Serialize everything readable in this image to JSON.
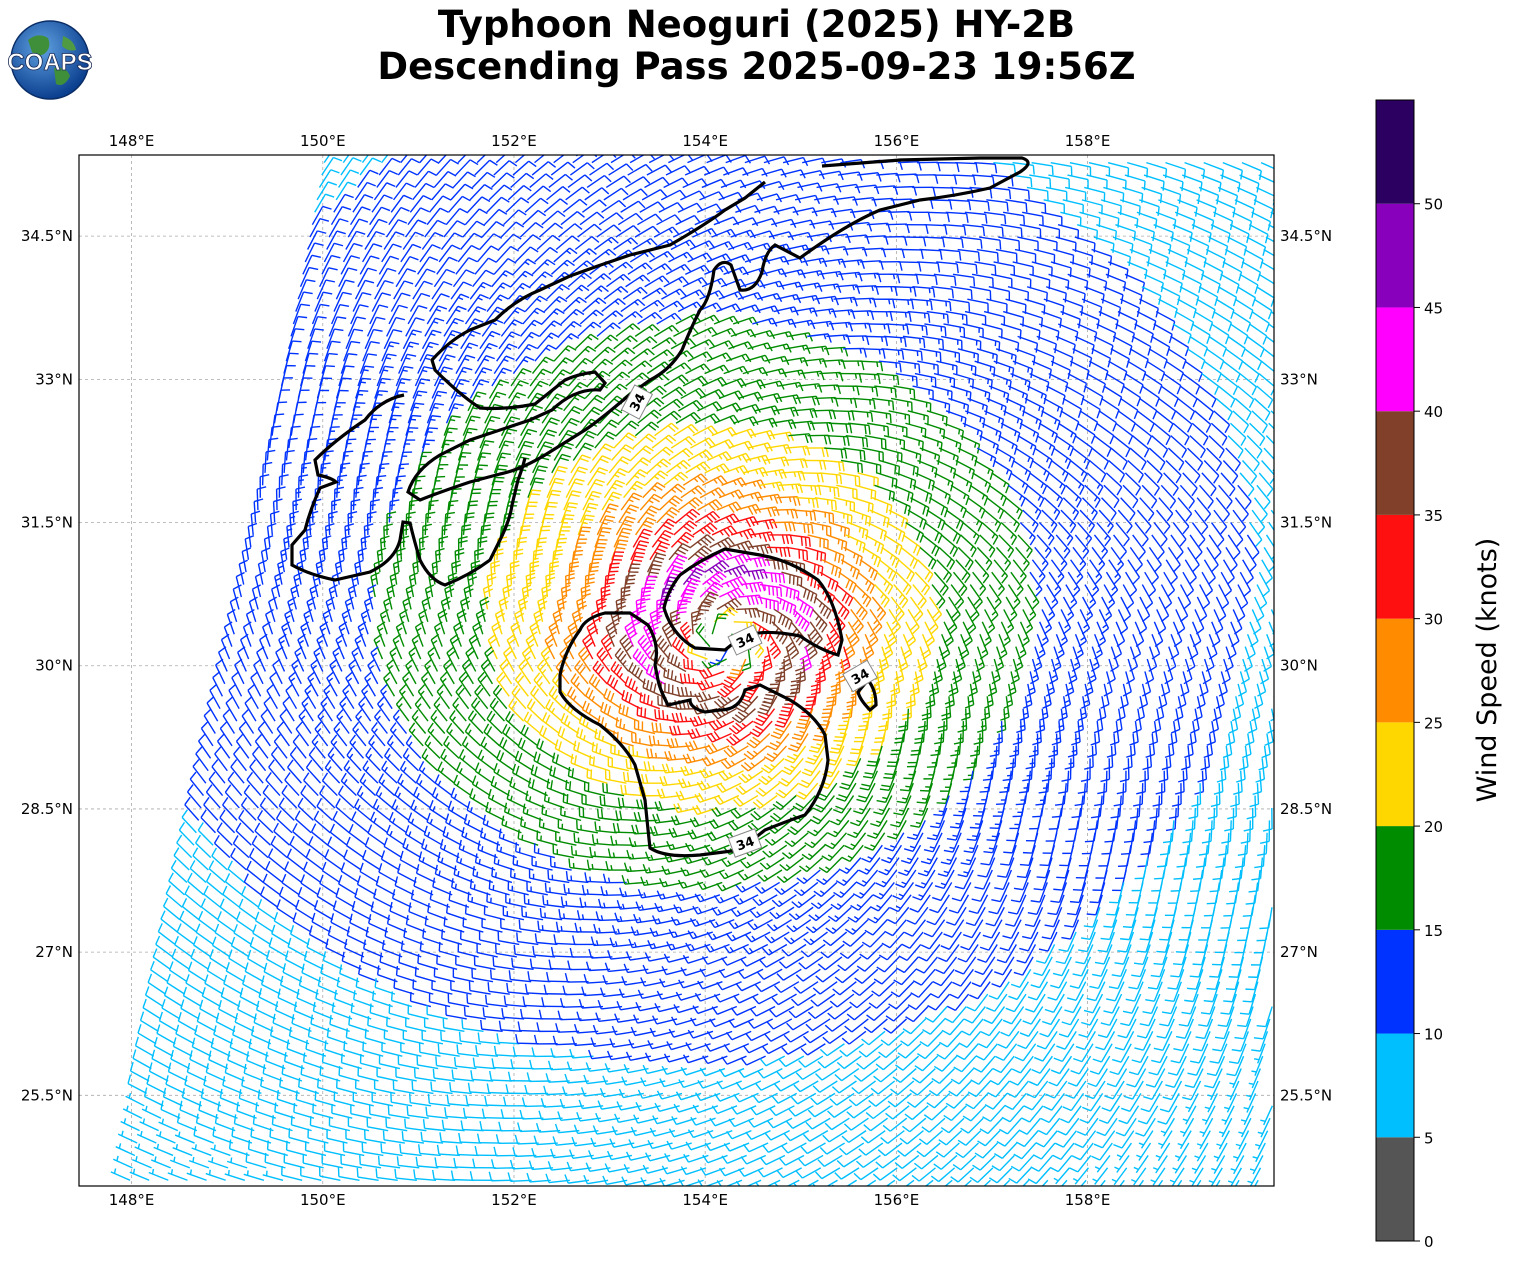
{
  "title": {
    "line1": "Typhoon Neoguri (2025) HY-2B",
    "line2": "Descending Pass 2025-09-23 19:56Z"
  },
  "logo": {
    "text": "COAPS",
    "icon": "globe-logo-icon"
  },
  "map": {
    "projection": "PlateCarree",
    "lon_range": [
      147.45,
      159.95
    ],
    "lat_range": [
      24.55,
      35.35
    ],
    "lon_ticks": [
      148,
      150,
      152,
      154,
      156,
      158
    ],
    "lat_ticks": [
      25.5,
      27,
      28.5,
      30,
      31.5,
      33,
      34.5
    ],
    "lon_tick_labels": [
      "148°E",
      "150°E",
      "152°E",
      "154°E",
      "156°E",
      "158°E"
    ],
    "lat_tick_labels": [
      "25.5°N",
      "27°N",
      "28.5°N",
      "30°N",
      "31.5°N",
      "33°N",
      "34.5°N"
    ],
    "gridlines": true,
    "grid_style": "dashed gray"
  },
  "storm": {
    "center_lon": 154.2,
    "center_lat": 30.25,
    "rotation": "counter-clockwise",
    "swath_west_edge": [
      [
        148.0,
        24.85
      ],
      [
        150.0,
        35.35
      ]
    ]
  },
  "contours": {
    "level": 34,
    "labels": [
      "34",
      "34",
      "34",
      "34"
    ],
    "color": "#000000"
  },
  "colorbar": {
    "title": "Wind Speed (knots)",
    "bounds": [
      0,
      5,
      10,
      15,
      20,
      25,
      30,
      35,
      40,
      45,
      50,
      55
    ],
    "tick_labels": [
      "0",
      "5",
      "10",
      "15",
      "20",
      "25",
      "30",
      "35",
      "40",
      "45",
      "50"
    ],
    "colors": [
      "#555555",
      "#00bfff",
      "#0033ff",
      "#008c00",
      "#ffd700",
      "#ff8c00",
      "#ff1010",
      "#80402a",
      "#ff00ff",
      "#8800bb",
      "#2b0060"
    ]
  }
}
